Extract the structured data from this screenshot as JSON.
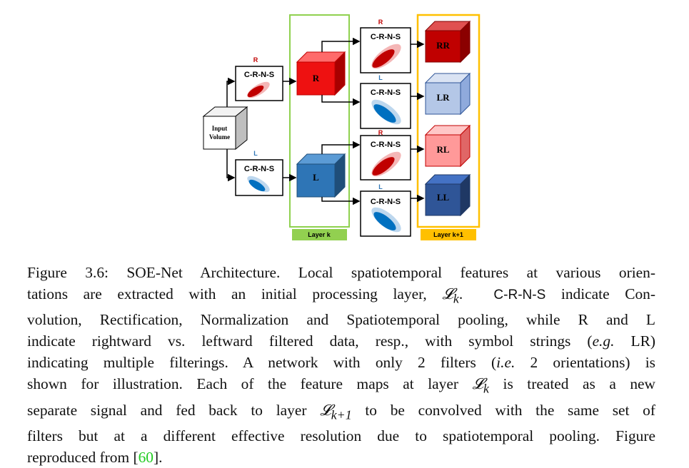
{
  "diagram": {
    "input_label_line1": "Input",
    "input_label_line2": "Volume",
    "crns_label": "C-R-N-S",
    "tag_r": "R",
    "tag_l": "L",
    "layer_k": "Layer k",
    "layer_k1": "Layer k+1",
    "cube_r": "R",
    "cube_l": "L",
    "out_rr": "RR",
    "out_lr": "LR",
    "out_rl": "RL",
    "out_ll": "LL",
    "colors": {
      "layer_k_border": "#8fd14f",
      "layer_k1_border": "#ffc000",
      "layer_k_tag_bg": "#92d050",
      "layer_k1_tag_bg": "#ffc000",
      "red": "#e8141b",
      "blue": "#2e75b6",
      "rr": "#c00000",
      "lr": "#b4c7e7",
      "rl": "#ff9999",
      "ll": "#2f5597"
    }
  },
  "caption": {
    "fig_prefix": "Figure 3.6: SOE-Net Architecture.",
    "s1a": "Local spatiotemporal features at various orien-",
    "s1b": "tations are extracted with an initial processing layer,",
    "lk": "𝓛",
    "sub_k": "k",
    "crns": "C-R-N-S",
    "s2a": "indicate Con-",
    "s2b": "volution, Rectification, Normalization and Spatiotemporal pooling, while R and L",
    "s3": "indicate rightward vs.  leftward filtered data, resp., with symbol strings (",
    "eg": "e.g.",
    "s3b": " LR)",
    "s4a": "indicating multiple filterings.  A network with only 2 filters (",
    "ie": "i.e.",
    "s4b": " 2 orientations) is",
    "s5a": "shown for illustration.  Each of the feature maps at layer",
    "s5b": "is treated as a new",
    "s6a": "separate signal and fed back to layer",
    "sub_k1": "k+1",
    "s6b": "to be convolved with the same set of",
    "s7": "filters but at a different effective resolution due to spatiotemporal pooling.  Figure",
    "s8a": "reproduced from [",
    "ref": "60",
    "s8b": "]."
  }
}
